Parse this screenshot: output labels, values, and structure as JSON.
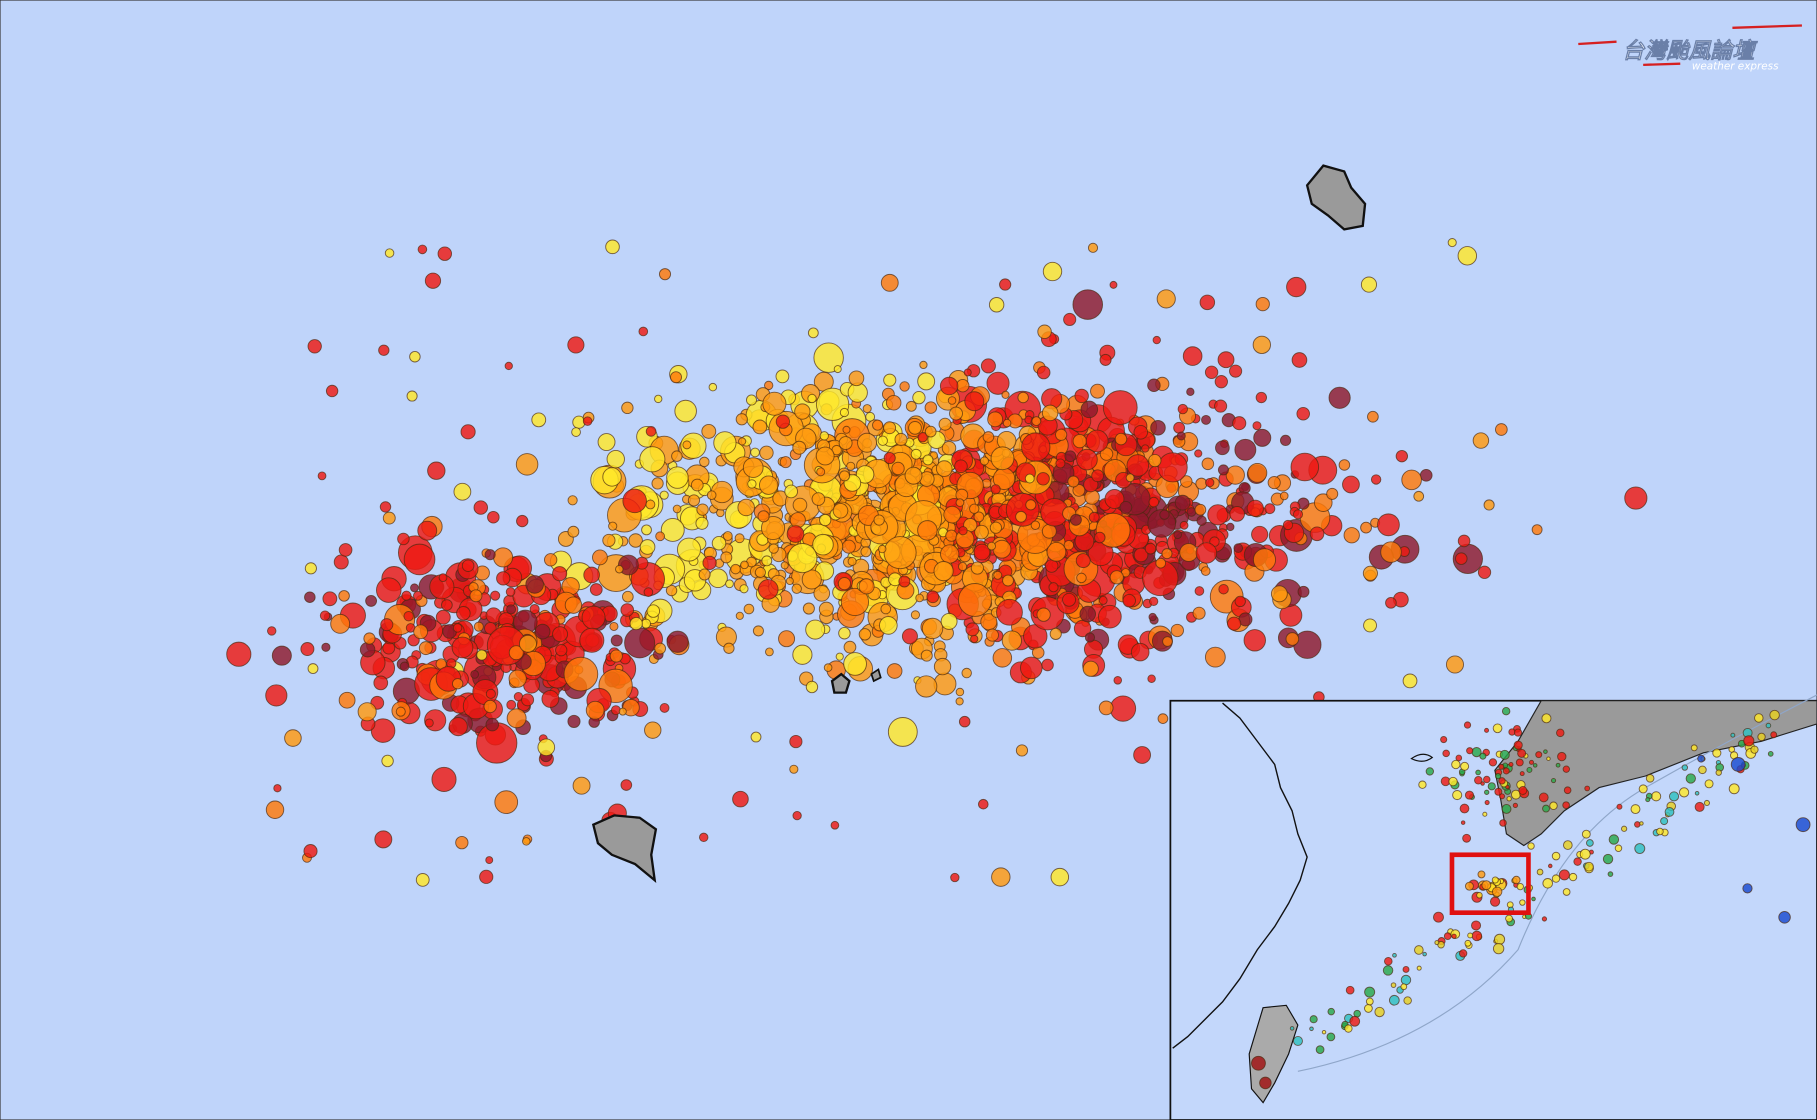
{
  "watermark": {
    "title": "台灣颱風論壇",
    "subtitle": "weather express"
  }
}
